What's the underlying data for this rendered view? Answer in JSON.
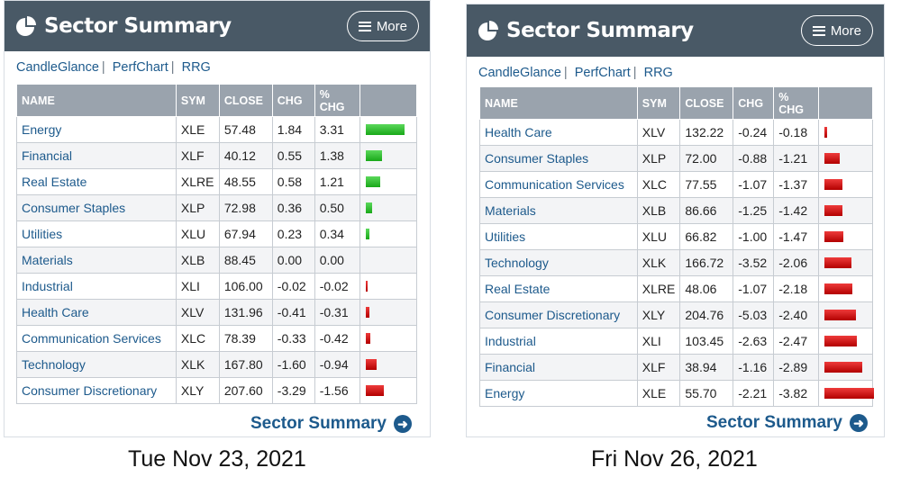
{
  "panels": [
    {
      "title": "Sector Summary",
      "more_label": "More",
      "links": [
        "CandleGlance",
        "PerfChart",
        "RRG"
      ],
      "columns": [
        "NAME",
        "SYM",
        "CLOSE",
        "CHG",
        "% CHG"
      ],
      "rows": [
        {
          "name": "Energy",
          "sym": "XLE",
          "close": "57.48",
          "chg": "1.84",
          "pct": "3.31"
        },
        {
          "name": "Financial",
          "sym": "XLF",
          "close": "40.12",
          "chg": "0.55",
          "pct": "1.38"
        },
        {
          "name": "Real Estate",
          "sym": "XLRE",
          "close": "48.55",
          "chg": "0.58",
          "pct": "1.21"
        },
        {
          "name": "Consumer Staples",
          "sym": "XLP",
          "close": "72.98",
          "chg": "0.36",
          "pct": "0.50"
        },
        {
          "name": "Utilities",
          "sym": "XLU",
          "close": "67.94",
          "chg": "0.23",
          "pct": "0.34"
        },
        {
          "name": "Materials",
          "sym": "XLB",
          "close": "88.45",
          "chg": "0.00",
          "pct": "0.00"
        },
        {
          "name": "Industrial",
          "sym": "XLI",
          "close": "106.00",
          "chg": "-0.02",
          "pct": "-0.02"
        },
        {
          "name": "Health Care",
          "sym": "XLV",
          "close": "131.96",
          "chg": "-0.41",
          "pct": "-0.31"
        },
        {
          "name": "Communication Services",
          "sym": "XLC",
          "close": "78.39",
          "chg": "-0.33",
          "pct": "-0.42"
        },
        {
          "name": "Technology",
          "sym": "XLK",
          "close": "167.80",
          "chg": "-1.60",
          "pct": "-0.94"
        },
        {
          "name": "Consumer Discretionary",
          "sym": "XLY",
          "close": "207.60",
          "chg": "-3.29",
          "pct": "-1.56"
        }
      ],
      "footer_link": "Sector Summary",
      "date": "Tue Nov 23, 2021"
    },
    {
      "title": "Sector Summary",
      "more_label": "More",
      "links": [
        "CandleGlance",
        "PerfChart",
        "RRG"
      ],
      "columns": [
        "NAME",
        "SYM",
        "CLOSE",
        "CHG",
        "% CHG"
      ],
      "rows": [
        {
          "name": "Health Care",
          "sym": "XLV",
          "close": "132.22",
          "chg": "-0.24",
          "pct": "-0.18"
        },
        {
          "name": "Consumer Staples",
          "sym": "XLP",
          "close": "72.00",
          "chg": "-0.88",
          "pct": "-1.21"
        },
        {
          "name": "Communication Services",
          "sym": "XLC",
          "close": "77.55",
          "chg": "-1.07",
          "pct": "-1.37"
        },
        {
          "name": "Materials",
          "sym": "XLB",
          "close": "86.66",
          "chg": "-1.25",
          "pct": "-1.42"
        },
        {
          "name": "Utilities",
          "sym": "XLU",
          "close": "66.82",
          "chg": "-1.00",
          "pct": "-1.47"
        },
        {
          "name": "Technology",
          "sym": "XLK",
          "close": "166.72",
          "chg": "-3.52",
          "pct": "-2.06"
        },
        {
          "name": "Real Estate",
          "sym": "XLRE",
          "close": "48.06",
          "chg": "-1.07",
          "pct": "-2.18"
        },
        {
          "name": "Consumer Discretionary",
          "sym": "XLY",
          "close": "204.76",
          "chg": "-5.03",
          "pct": "-2.40"
        },
        {
          "name": "Industrial",
          "sym": "XLI",
          "close": "103.45",
          "chg": "-2.63",
          "pct": "-2.47"
        },
        {
          "name": "Financial",
          "sym": "XLF",
          "close": "38.94",
          "chg": "-1.16",
          "pct": "-2.89"
        },
        {
          "name": "Energy",
          "sym": "XLE",
          "close": "55.70",
          "chg": "-2.21",
          "pct": "-3.82"
        }
      ],
      "footer_link": "Sector Summary",
      "date": "Fri Nov 26, 2021"
    }
  ],
  "colors": {
    "header_bg": "#495966",
    "table_header_bg": "#9aa3ad",
    "link": "#1d5a8c",
    "positive_bar": "#22b022",
    "negative_bar": "#cc0000"
  }
}
